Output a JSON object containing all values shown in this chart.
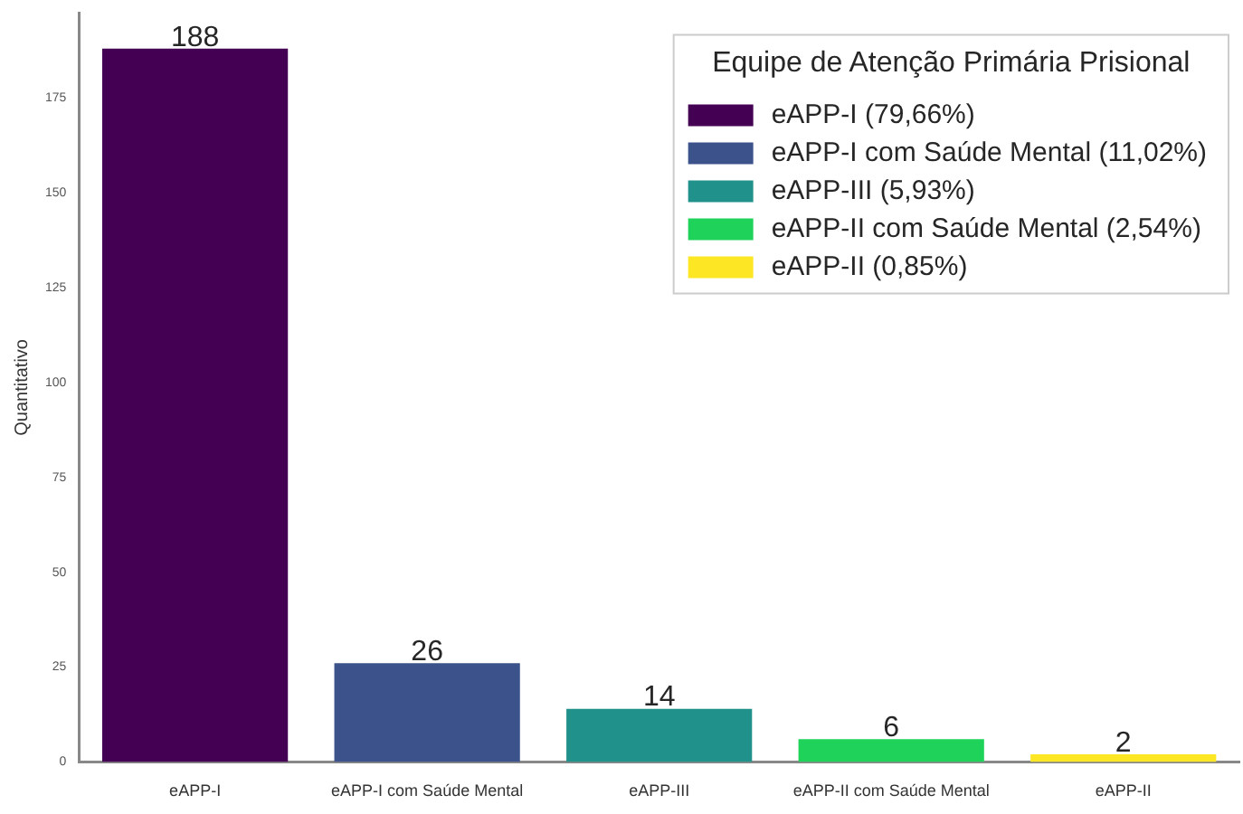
{
  "chart_data": {
    "type": "bar",
    "ylabel": "Quantitativo",
    "legend_title": "Equipe de Atenção Primária Prisional",
    "categories": [
      "eAPP-I",
      "eAPP-I com Saúde Mental",
      "eAPP-III",
      "eAPP-II com Saúde Mental",
      "eAPP-II"
    ],
    "series": [
      {
        "name": "eAPP-I (79,66%)",
        "color": "#440154",
        "values": [
          188,
          null,
          null,
          null,
          null
        ]
      },
      {
        "name": "eAPP-I com Saúde Mental (11,02%)",
        "color": "#3b528b",
        "values": [
          null,
          26,
          null,
          null,
          null
        ]
      },
      {
        "name": "eAPP-III (5,93%)",
        "color": "#21918c",
        "values": [
          null,
          null,
          14,
          null,
          null
        ]
      },
      {
        "name": "eAPP-II com Saúde Mental (2,54%)",
        "color": "#1fd35a",
        "values": [
          null,
          null,
          null,
          6,
          null
        ]
      },
      {
        "name": "eAPP-II (0,85%)",
        "color": "#fde725",
        "values": [
          null,
          null,
          null,
          null,
          2
        ]
      }
    ],
    "ylim": [
      0,
      197.4
    ],
    "yticks": [
      0,
      25,
      50,
      75,
      100,
      125,
      150,
      175
    ],
    "grid": false,
    "legend": "top right",
    "data_labels": true
  }
}
